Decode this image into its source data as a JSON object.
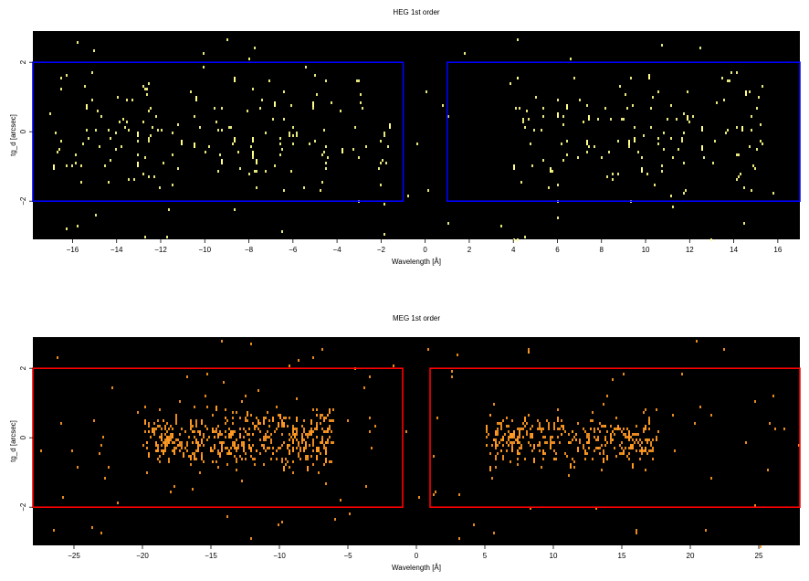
{
  "chart_data": [
    {
      "type": "heatmap",
      "title": "HEG 1st order",
      "xlabel": "Wavelength [Å]",
      "ylabel": "tg_d [arcsec]",
      "xlim": [
        -17.8,
        17.0
      ],
      "ylim": [
        -3.1,
        2.9
      ],
      "xticks": [
        -16,
        -14,
        -12,
        -10,
        -8,
        -6,
        -4,
        -2,
        0,
        2,
        4,
        6,
        8,
        10,
        12,
        14,
        16
      ],
      "yticks": [
        -2,
        0,
        2
      ],
      "grid": false,
      "colors": {
        "background": "#000000",
        "event": "#ffff88",
        "region": "#0000ff"
      },
      "regions": [
        {
          "x": [
            -17.8,
            -1.0
          ],
          "y": [
            -2.0,
            2.0
          ]
        },
        {
          "x": [
            1.0,
            17.0
          ],
          "y": [
            -2.0,
            2.0
          ]
        }
      ],
      "clusters": [
        {
          "x_range": [
            -17.0,
            -1.5
          ],
          "y_sigma": 0.9,
          "count": 160
        },
        {
          "x_range": [
            4.0,
            15.5
          ],
          "y_sigma": 0.8,
          "count": 120
        }
      ],
      "background_events": 70
    },
    {
      "type": "heatmap",
      "title": "MEG 1st order",
      "xlabel": "Wavelength [Å]",
      "ylabel": "tg_d [arcsec]",
      "xlim": [
        -28.0,
        28.0
      ],
      "ylim": [
        -3.1,
        2.9
      ],
      "xticks": [
        -25,
        -20,
        -15,
        -10,
        -5,
        0,
        5,
        10,
        15,
        20,
        25
      ],
      "yticks": [
        -2,
        0,
        2
      ],
      "grid": false,
      "colors": {
        "background": "#000000",
        "event": "#ff9922",
        "region": "#ff0000"
      },
      "regions": [
        {
          "x": [
            -28.0,
            -1.0
          ],
          "y": [
            -2.0,
            2.0
          ]
        },
        {
          "x": [
            1.0,
            28.0
          ],
          "y": [
            -2.0,
            2.0
          ]
        }
      ],
      "clusters": [
        {
          "x_range": [
            -20.0,
            -6.0
          ],
          "y_sigma": 0.45,
          "count": 460
        },
        {
          "x_range": [
            5.0,
            17.5
          ],
          "y_sigma": 0.35,
          "count": 320
        }
      ],
      "background_events": 110
    }
  ]
}
